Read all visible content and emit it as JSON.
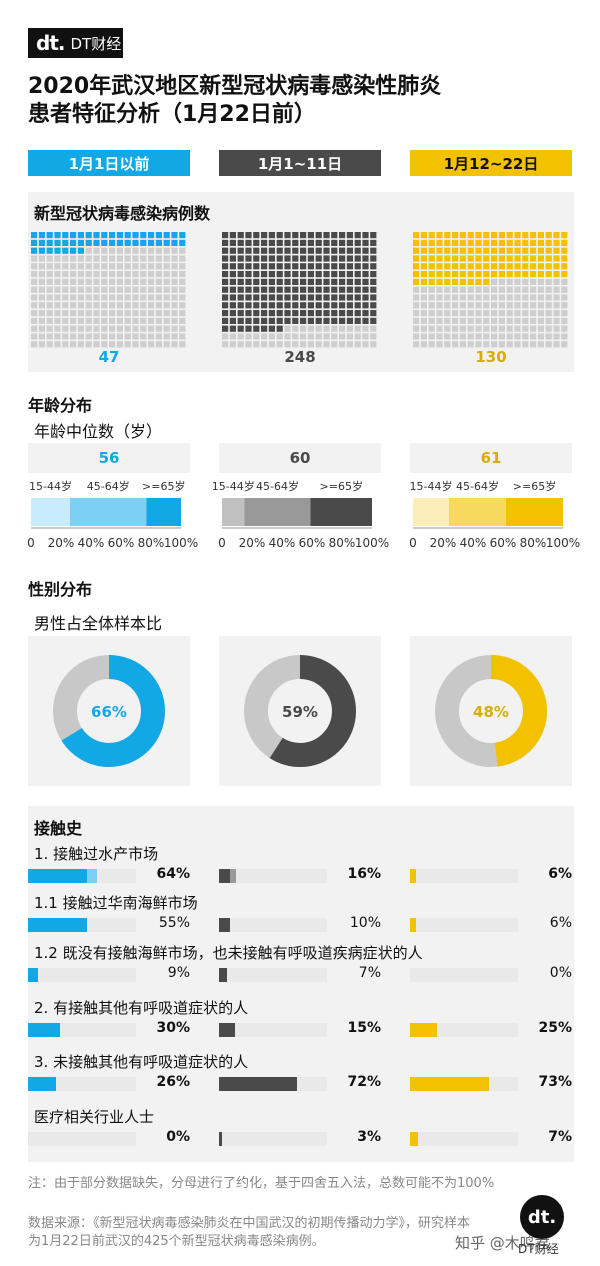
{
  "brand": {
    "mark": "dt.",
    "name": "DT财经"
  },
  "title_line1": "2020年武汉地区新型冠状病毒感染性肺炎",
  "title_line2": "患者特征分析（1月22日前）",
  "periods": [
    {
      "label": "1月1日以前",
      "color": "#12a8e6",
      "text_color": "#ffffff"
    },
    {
      "label": "1月1~11日",
      "color": "#4a4a4a",
      "text_color": "#ffffff"
    },
    {
      "label": "1月12~22日",
      "color": "#f2c200",
      "text_color": "#111111"
    }
  ],
  "cases": {
    "title": "新型冠状病毒感染病例数",
    "values": [
      "47",
      "248",
      "130"
    ],
    "counts": [
      47,
      248,
      130
    ],
    "empty_color": "#cfcfcf"
  },
  "age": {
    "title": "年龄分布",
    "subtitle": "年龄中位数（岁）",
    "medians": [
      "56",
      "60",
      "61"
    ],
    "group_labels": [
      "15-44岁",
      "45-64岁",
      ">=65岁"
    ],
    "ticks": [
      "0",
      "20%",
      "40%",
      "60%",
      "80%",
      "100%"
    ],
    "distributions": [
      {
        "shares": [
          0.26,
          0.51,
          0.23
        ],
        "colors": [
          "#c9ecfa",
          "#7cd0f2",
          "#12a8e6"
        ]
      },
      {
        "shares": [
          0.15,
          0.44,
          0.41
        ],
        "colors": [
          "#c0c0c0",
          "#999999",
          "#4a4a4a"
        ]
      },
      {
        "shares": [
          0.24,
          0.38,
          0.38
        ],
        "colors": [
          "#fbeebb",
          "#f7d95f",
          "#f2c200"
        ]
      }
    ]
  },
  "gender": {
    "title": "性别分布",
    "subtitle": "男性占全体样本比",
    "labels": [
      "66%",
      "59%",
      "48%"
    ],
    "shares": [
      0.66,
      0.59,
      0.48
    ],
    "rest_color": "#c8c8c8"
  },
  "contact": {
    "title": "接触史",
    "rows": [
      {
        "label": "1. 接触过水产市场",
        "values": [
          "64%",
          "16%",
          "6%"
        ],
        "shares": [
          0.64,
          0.16,
          0.06
        ],
        "split": [
          0.55,
          0.1,
          0.06
        ],
        "bold": true
      },
      {
        "label": "1.1 接触过华南海鲜市场",
        "values": [
          "55%",
          "10%",
          "6%"
        ],
        "shares": [
          0.55,
          0.1,
          0.06
        ],
        "split": null,
        "bold": false
      },
      {
        "label": "1.2 既没有接触海鲜市场，也未接触有呼吸道疾病症状的人",
        "values": [
          "9%",
          "7%",
          "0%"
        ],
        "shares": [
          0.09,
          0.07,
          0.0
        ],
        "split": null,
        "bold": false
      },
      {
        "label": "2. 有接触其他有呼吸道症状的人",
        "values": [
          "30%",
          "15%",
          "25%"
        ],
        "shares": [
          0.3,
          0.15,
          0.25
        ],
        "split": null,
        "bold": true
      },
      {
        "label": "3. 未接触其他有呼吸道症状的人",
        "values": [
          "26%",
          "72%",
          "73%"
        ],
        "shares": [
          0.26,
          0.72,
          0.73
        ],
        "split": null,
        "bold": true
      },
      {
        "label": "医疗相关行业人士",
        "values": [
          "0%",
          "3%",
          "7%"
        ],
        "shares": [
          0.0,
          0.03,
          0.07
        ],
        "split": null,
        "bold": true
      }
    ],
    "light_colors": [
      "#7cd0f2",
      "#999999",
      "#f7d95f"
    ]
  },
  "note": "注：由于部分数据缺失，分母进行了约化，基于四舍五入法，总数可能不为100%",
  "source_line1": "数据来源：《新型冠状病毒感染肺炎在中国武汉的初期传播动力学》，研究样本",
  "source_line2": "为1月22日前武汉的425个新型冠状病毒感染病例。",
  "zhihu": "知乎 @木鸣君",
  "chart_data": [
    {
      "type": "table",
      "title": "新型冠状病毒感染病例数",
      "categories": [
        "1月1日以前",
        "1月1~11日",
        "1月12~22日"
      ],
      "values": [
        47,
        248,
        130
      ]
    },
    {
      "type": "bar",
      "title": "年龄分布",
      "categories": [
        "1月1日以前",
        "1月1~11日",
        "1月12~22日"
      ],
      "xlabel": "",
      "ylabel": "",
      "series": [
        {
          "name": "15-44岁",
          "values": [
            0.26,
            0.15,
            0.24
          ]
        },
        {
          "name": "45-64岁",
          "values": [
            0.51,
            0.44,
            0.38
          ]
        },
        {
          "name": ">=65岁",
          "values": [
            0.23,
            0.41,
            0.38
          ]
        }
      ]
    },
    {
      "type": "pie",
      "title": "男性占全体样本比",
      "categories": [
        "1月1日以前",
        "1月1~11日",
        "1月12~22日"
      ],
      "values": [
        66,
        59,
        48
      ]
    },
    {
      "type": "bar",
      "title": "接触史",
      "categories": [
        "1. 接触过水产市场",
        "1.1 接触过华南海鲜市场",
        "1.2 既没有接触海鲜市场，也未接触有呼吸道疾病症状的人",
        "2. 有接触其他有呼吸道症状的人",
        "3. 未接触其他有呼吸道症状的人",
        "医疗相关行业人士"
      ],
      "series": [
        {
          "name": "1月1日以前",
          "values": [
            64,
            55,
            9,
            30,
            26,
            0
          ]
        },
        {
          "name": "1月1~11日",
          "values": [
            16,
            10,
            7,
            15,
            72,
            3
          ]
        },
        {
          "name": "1月12~22日",
          "values": [
            6,
            6,
            0,
            25,
            73,
            7
          ]
        }
      ]
    }
  ]
}
